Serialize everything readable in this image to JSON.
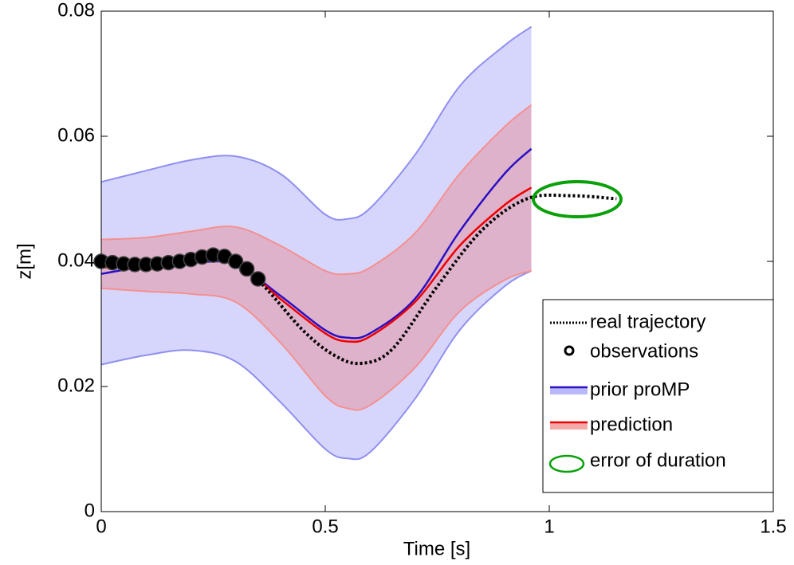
{
  "chart_data": {
    "type": "line",
    "xlabel": "Time [s]",
    "ylabel": "z[m]",
    "xlim": [
      0,
      1.5
    ],
    "ylim": [
      0,
      0.08
    ],
    "xticks": [
      0,
      0.5,
      1,
      1.5
    ],
    "yticks": [
      0,
      0.02,
      0.04,
      0.06,
      0.08
    ],
    "series": [
      {
        "name": "real trajectory",
        "color": "#000000",
        "style": "dotted",
        "x": [
          0,
          0.1,
          0.2,
          0.27,
          0.35,
          0.45,
          0.52,
          0.58,
          0.65,
          0.75,
          0.85,
          0.95,
          1.05,
          1.15
        ],
        "values": [
          0.04,
          0.0395,
          0.04,
          0.041,
          0.037,
          0.029,
          0.025,
          0.0237,
          0.026,
          0.036,
          0.045,
          0.05,
          0.0505,
          0.05
        ]
      },
      {
        "name": "observations",
        "color": "#000000",
        "style": "markers",
        "x": [
          0,
          0.025,
          0.05,
          0.075,
          0.1,
          0.125,
          0.15,
          0.175,
          0.2,
          0.225,
          0.25,
          0.275,
          0.3,
          0.325,
          0.35
        ],
        "values": [
          0.04,
          0.0398,
          0.0396,
          0.0395,
          0.0395,
          0.0396,
          0.0398,
          0.04,
          0.0403,
          0.0407,
          0.041,
          0.0408,
          0.04,
          0.0388,
          0.0372
        ]
      },
      {
        "name": "prior proMP",
        "color": "#2a0fc4",
        "band_color": "#8a8af5",
        "band_edge": "#8f8ff0",
        "style": "band",
        "x": [
          0,
          0.1,
          0.2,
          0.3,
          0.4,
          0.5,
          0.55,
          0.6,
          0.7,
          0.8,
          0.9,
          0.96
        ],
        "values": [
          0.038,
          0.0392,
          0.0398,
          0.0395,
          0.0345,
          0.029,
          0.0278,
          0.0285,
          0.034,
          0.0448,
          0.054,
          0.058
        ],
        "upper": [
          0.0527,
          0.0545,
          0.0562,
          0.0568,
          0.054,
          0.0475,
          0.0468,
          0.0485,
          0.057,
          0.068,
          0.0745,
          0.0775
        ],
        "lower": [
          0.0235,
          0.025,
          0.0258,
          0.024,
          0.0175,
          0.01,
          0.0085,
          0.0095,
          0.018,
          0.029,
          0.036,
          0.0385
        ]
      },
      {
        "name": "prediction",
        "color": "#ee0000",
        "band_color": "#f07070",
        "band_edge": "#f49090",
        "style": "band",
        "x": [
          0,
          0.1,
          0.2,
          0.3,
          0.4,
          0.5,
          0.55,
          0.6,
          0.7,
          0.8,
          0.9,
          0.96
        ],
        "values": [
          0.039,
          0.0395,
          0.04,
          0.0398,
          0.034,
          0.0285,
          0.0272,
          0.028,
          0.0335,
          0.0425,
          0.049,
          0.0518
        ],
        "upper": [
          0.0435,
          0.0438,
          0.0448,
          0.0455,
          0.0425,
          0.0385,
          0.038,
          0.039,
          0.0445,
          0.054,
          0.0615,
          0.065
        ],
        "lower": [
          0.0357,
          0.0352,
          0.0348,
          0.0335,
          0.027,
          0.0185,
          0.0165,
          0.017,
          0.023,
          0.032,
          0.037,
          0.0385
        ]
      }
    ],
    "annotation": {
      "label": "error of duration",
      "color": "#0aa00a"
    }
  }
}
